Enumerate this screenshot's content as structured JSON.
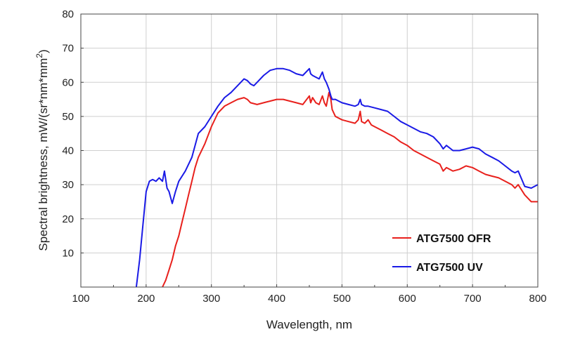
{
  "chart_data": {
    "type": "line",
    "title": "",
    "xlabel": "Wavelength, nm",
    "ylabel": "Spectral brightness, mW/(sr*nm*mm",
    "ylabel_sup": "2",
    "ylabel_close": ")",
    "xlim": [
      100,
      800
    ],
    "ylim": [
      0,
      80
    ],
    "xticks": [
      "100",
      "200",
      "300",
      "400",
      "500",
      "600",
      "700",
      "800"
    ],
    "yticks": [
      "10",
      "20",
      "30",
      "40",
      "50",
      "60",
      "70",
      "80"
    ],
    "grid": true,
    "legend_position": "bottom-right",
    "series": [
      {
        "name": "ATG7500 OFR",
        "color": "#e8201c",
        "x": [
          225,
          230,
          235,
          240,
          245,
          250,
          255,
          260,
          265,
          270,
          275,
          280,
          290,
          300,
          310,
          320,
          330,
          340,
          350,
          355,
          360,
          370,
          380,
          390,
          400,
          410,
          420,
          430,
          440,
          450,
          452,
          455,
          460,
          465,
          470,
          473,
          476,
          480,
          483,
          485,
          490,
          500,
          510,
          520,
          525,
          528,
          530,
          535,
          540,
          545,
          550,
          560,
          570,
          580,
          590,
          600,
          610,
          620,
          630,
          640,
          650,
          655,
          660,
          670,
          680,
          690,
          700,
          710,
          720,
          730,
          740,
          750,
          760,
          765,
          770,
          780,
          790,
          800
        ],
        "y": [
          0,
          2,
          5,
          8,
          12,
          15,
          19,
          23,
          27,
          31,
          35,
          38,
          42,
          47,
          51,
          53,
          54,
          55,
          55.5,
          55,
          54,
          53.5,
          54,
          54.5,
          55,
          55,
          54.5,
          54,
          53.5,
          56,
          54,
          55.5,
          54,
          53.5,
          56,
          54,
          53,
          57,
          55,
          52,
          50,
          49,
          48.5,
          48,
          49,
          51.5,
          48.5,
          48,
          49,
          47.5,
          47,
          46,
          45,
          44,
          42.5,
          41.5,
          40,
          39,
          38,
          37,
          36,
          34,
          35,
          34,
          34.5,
          35.5,
          35,
          34,
          33,
          32.5,
          32,
          31,
          30,
          29,
          30,
          27,
          25,
          25
        ]
      },
      {
        "name": "ATG7500 UV",
        "color": "#1a1ae6",
        "x": [
          185,
          190,
          195,
          200,
          205,
          210,
          215,
          220,
          225,
          228,
          232,
          235,
          240,
          245,
          250,
          260,
          270,
          280,
          290,
          300,
          310,
          320,
          330,
          340,
          350,
          355,
          360,
          365,
          370,
          380,
          390,
          400,
          410,
          420,
          430,
          440,
          450,
          452,
          455,
          460,
          465,
          470,
          473,
          476,
          480,
          483,
          485,
          490,
          500,
          510,
          520,
          525,
          528,
          530,
          535,
          540,
          550,
          560,
          570,
          580,
          590,
          600,
          610,
          620,
          630,
          640,
          650,
          655,
          660,
          670,
          680,
          690,
          700,
          710,
          720,
          730,
          740,
          750,
          760,
          765,
          770,
          780,
          790,
          800
        ],
        "y": [
          0,
          8,
          18,
          28,
          31,
          31.5,
          31,
          32,
          31,
          34,
          29,
          28,
          24.5,
          28,
          31,
          34,
          38,
          45,
          47,
          50,
          53,
          55.5,
          57,
          59,
          61,
          60.5,
          59.5,
          59,
          60,
          62,
          63.5,
          64,
          64,
          63.5,
          62.5,
          62,
          64,
          62.5,
          62,
          61.5,
          61,
          63,
          61,
          60,
          58,
          56,
          55,
          55,
          54,
          53.5,
          53,
          53.5,
          55,
          53.5,
          53,
          53,
          52.5,
          52,
          51.5,
          50,
          48.5,
          47.5,
          46.5,
          45.5,
          45,
          44,
          42,
          40.5,
          41.5,
          40,
          40,
          40.5,
          41,
          40.5,
          39,
          38,
          37,
          35.5,
          34,
          33.5,
          34,
          29.5,
          29,
          30
        ]
      }
    ]
  }
}
